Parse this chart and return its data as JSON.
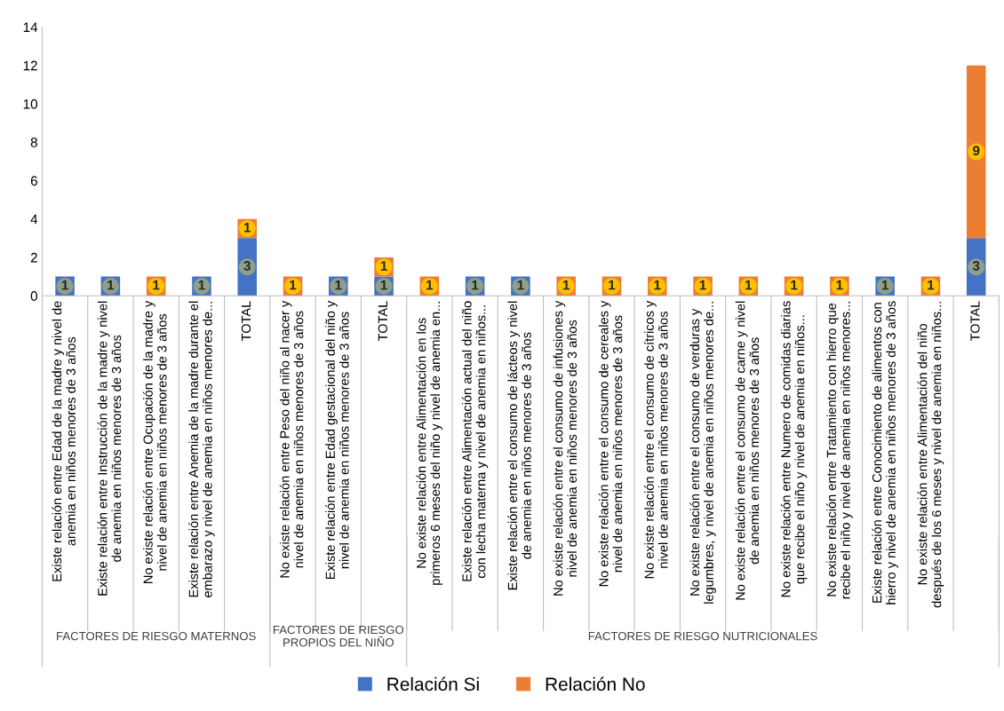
{
  "chart_data": {
    "type": "bar",
    "stacked": true,
    "categories": [
      "Existe relación entre Edad de la madre y nivel de\nanemia en niños menores de 3 años",
      "Existe relación entre Instrucción de la madre y nivel\nde anemia en niños menores de 3 años",
      "No existe relación entre Ocupación de la madre y\nnivel de anemia en niños menores de 3 años",
      "Existe relación entre Anemia de la madre durante el\nembarazo y nivel de anemia en niños menores de...",
      "TOTAL",
      "No existe relación entre Peso del niño al nacer y\nnivel de anemia en niños menores de 3 años",
      "Existe relación entre Edad gestacional del niño y\nnivel de anemia en niños menores de 3 años",
      "TOTAL",
      "No existe relación entre Alimentación en los\nprimeros 6 meses del niño y nivel de anemia en...",
      "Existe relación entre Alimentación actual del niño\ncon lecha materna y nivel de anemia en niños...",
      "Existe relación entre el consumo de lácteos y nivel\nde anemia en niños menores de 3 años",
      "No existe relación entre el consumo de infusiones y\nnivel de anemia en niños menores de 3 años",
      "No existe relación entre el consumo de cereales y\nnivel de anemia en niños menores de 3 años",
      "No existe relación entre el consumo de cítricos y\nnivel de anemia en niños menores de 3 años",
      "No existe relación entre el consumo de verduras y\nlegumbres, y nivel de anemia en niños menores de...",
      "No existe relación entre el consumo de carne y nivel\nde anemia en niños menores de 3 años",
      "No existe relación entre Numero de comidas diarias\nque recibe el niño y nivel de anemia en niños...",
      "No existe relación entre Tratamiento con hierro que\nrecibe el niño y nivel de anemia en niños menores...",
      "Existe relación entre Conocimiento de alimentos con\nhierro y nivel de anemia en niños menores de 3 años",
      "No existe relación entre Alimentación del niño\ndespués de los 6 meses y nivel de anemia en niños...",
      "TOTAL"
    ],
    "series": [
      {
        "name": "Relación Si",
        "color": "#4472c4",
        "values": [
          1,
          1,
          0,
          1,
          3,
          0,
          1,
          1,
          0,
          1,
          1,
          0,
          0,
          0,
          0,
          0,
          0,
          0,
          1,
          0,
          3
        ],
        "value_labels": [
          "1",
          "1",
          null,
          "1",
          "3",
          null,
          "1",
          "1",
          null,
          "1",
          "1",
          null,
          null,
          null,
          null,
          null,
          null,
          null,
          "1",
          null,
          "3"
        ]
      },
      {
        "name": "Relación No",
        "color": "#ed7d31",
        "values": [
          0,
          0,
          1,
          0,
          1,
          1,
          0,
          1,
          1,
          0,
          0,
          1,
          1,
          1,
          1,
          1,
          1,
          1,
          0,
          1,
          9
        ],
        "value_labels": [
          null,
          null,
          "1",
          null,
          "1",
          "1",
          null,
          "1",
          "1",
          null,
          null,
          "1",
          "1",
          "1",
          "1",
          "1",
          "1",
          "1",
          null,
          "1",
          "9"
        ]
      }
    ],
    "annotations": [
      "FACTORES DE RIESGO MATERNOS",
      "FACTORES DE RIESGO\nPROPIOS DEL NIÑO",
      "FACTORES DE RIESGO NUTRICIONALES"
    ],
    "ylim": [
      0,
      14
    ],
    "yticks": [
      0,
      2,
      4,
      6,
      8,
      10,
      12,
      14
    ],
    "grid": false,
    "legend": "bottom"
  }
}
